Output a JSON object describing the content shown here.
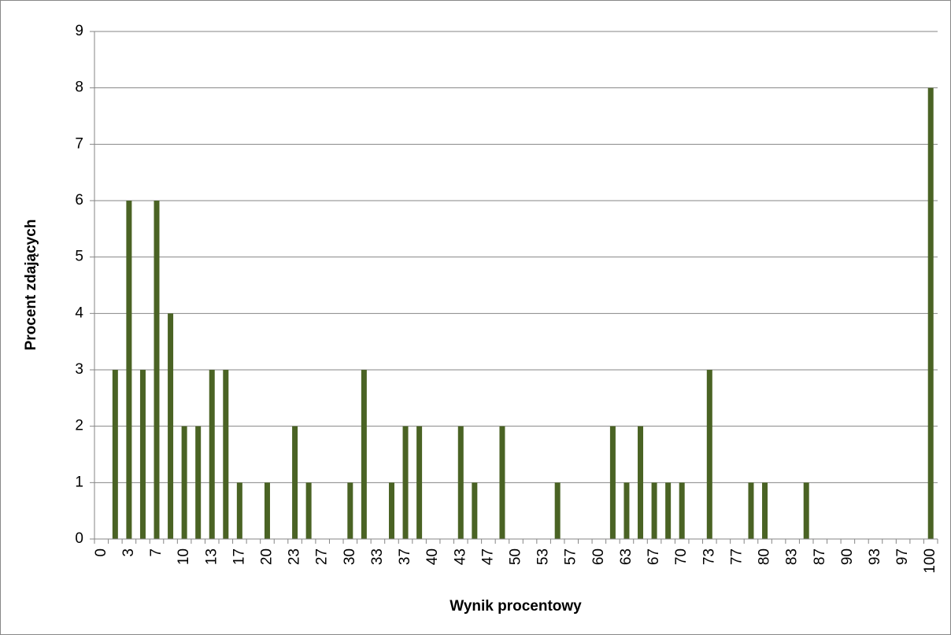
{
  "chart_data": {
    "type": "bar",
    "y_label": "Procent zdających",
    "x_label": "Wynik procentowy",
    "categories": [
      "0",
      null,
      "3",
      null,
      "7",
      null,
      "10",
      null,
      "13",
      null,
      "17",
      null,
      "20",
      null,
      "23",
      null,
      "27",
      null,
      "30",
      null,
      "33",
      null,
      "37",
      null,
      "40",
      null,
      "43",
      null,
      "47",
      null,
      "50",
      null,
      "53",
      null,
      "57",
      null,
      "60",
      null,
      "63",
      null,
      "67",
      null,
      "70",
      null,
      "73",
      null,
      "77",
      null,
      "80",
      null,
      "83",
      null,
      "87",
      null,
      "90",
      null,
      "93",
      null,
      "97",
      null,
      "100"
    ],
    "values": [
      0,
      3,
      6,
      3,
      6,
      4,
      2,
      2,
      3,
      3,
      1,
      0,
      1,
      0,
      2,
      1,
      0,
      0,
      1,
      3,
      0,
      1,
      2,
      2,
      0,
      0,
      2,
      1,
      0,
      2,
      0,
      0,
      0,
      1,
      0,
      0,
      0,
      2,
      1,
      2,
      1,
      1,
      1,
      0,
      3,
      0,
      0,
      1,
      1,
      0,
      0,
      1,
      0,
      0,
      0,
      0,
      0,
      0,
      0,
      0,
      8
    ],
    "color": "#4a6324",
    "ylim": [
      0,
      9
    ],
    "yticks": [
      0,
      1,
      2,
      3,
      4,
      5,
      6,
      7,
      8,
      9
    ],
    "grid": true
  }
}
